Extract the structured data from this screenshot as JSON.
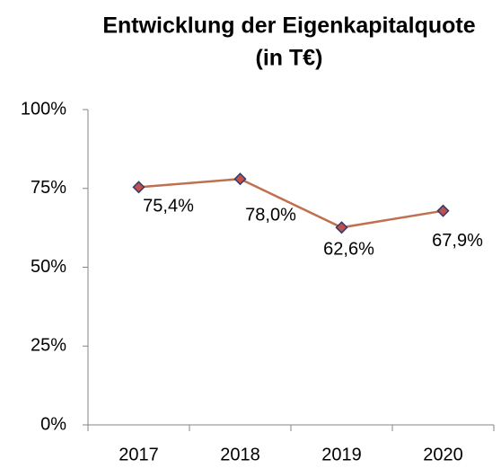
{
  "chart_data": {
    "type": "line",
    "title": [
      "Entwicklung der Eigenkapitalquote",
      "(in T€)"
    ],
    "categories": [
      "2017",
      "2018",
      "2019",
      "2020"
    ],
    "series": [
      {
        "name": "Eigenkapitalquote",
        "color": "#c0704f",
        "values": [
          75.4,
          78.0,
          62.6,
          67.9
        ],
        "value_labels": [
          "75,4%",
          "78,0%",
          "62,6%",
          "67,9%"
        ]
      }
    ],
    "ylim": [
      0,
      100
    ],
    "yticks": [
      {
        "value": 0,
        "label": "0%"
      },
      {
        "value": 25,
        "label": "25%"
      },
      {
        "value": 50,
        "label": "50%"
      },
      {
        "value": 75,
        "label": "75%"
      },
      {
        "value": 100,
        "label": "100%"
      }
    ]
  }
}
